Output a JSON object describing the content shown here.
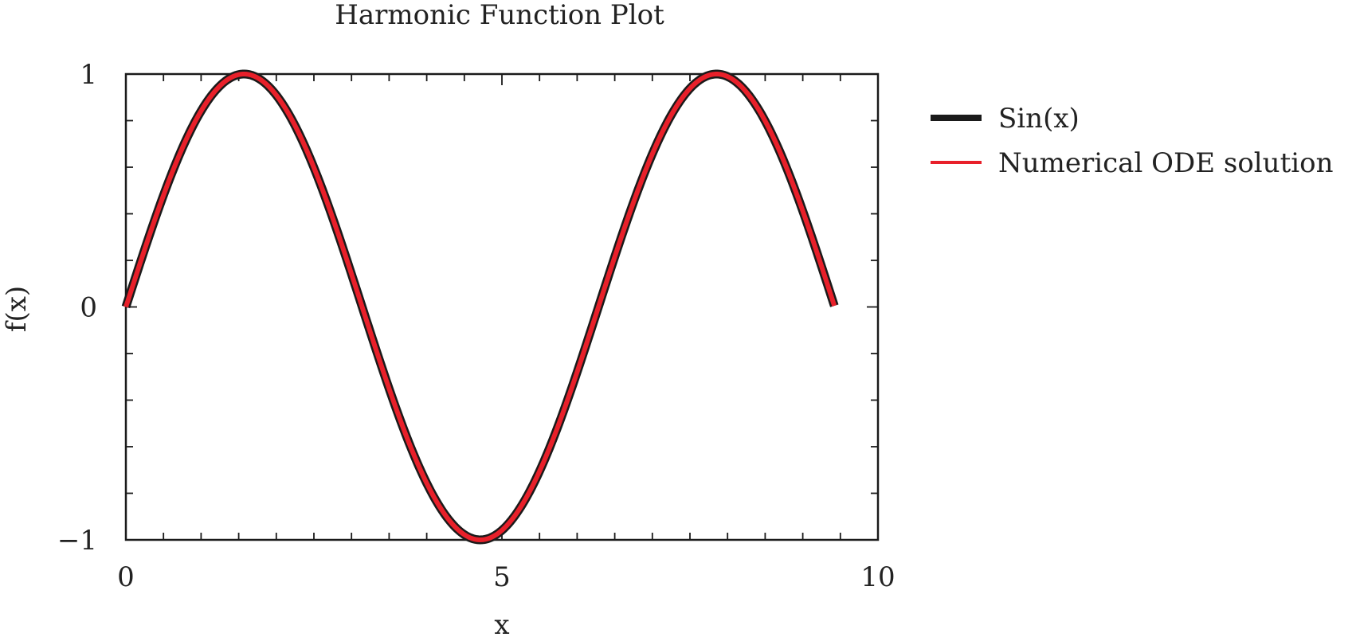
{
  "chart_data": {
    "type": "line",
    "title": "Harmonic Function Plot",
    "xlabel": "x",
    "ylabel": "f(x)",
    "xlim": [
      0,
      10
    ],
    "ylim": [
      -1,
      1
    ],
    "x_ticks": [
      0,
      5,
      10
    ],
    "x_tick_labels": [
      "0",
      "5",
      "10"
    ],
    "y_ticks": [
      -1,
      0,
      1
    ],
    "y_tick_labels": [
      "−1",
      "0",
      "1"
    ],
    "x_minor_step": 0.5,
    "y_minor_step": 0.2,
    "grid": false,
    "legend": "outside-right-top",
    "series": [
      {
        "name": "Sin(x)",
        "color": "#1a1a1a",
        "x_start": 0,
        "x_end": 9.42,
        "x": [
          0,
          0.5,
          1.0,
          1.5,
          1.57,
          2.0,
          2.5,
          3.0,
          3.14,
          3.5,
          4.0,
          4.5,
          4.71,
          5.0,
          5.5,
          6.0,
          6.28,
          6.5,
          7.0,
          7.5,
          7.85,
          8.0,
          8.5,
          9.0,
          9.42
        ],
        "values": [
          0,
          0.479,
          0.841,
          0.997,
          1.0,
          0.909,
          0.598,
          0.141,
          0.0,
          -0.351,
          -0.757,
          -0.978,
          -1.0,
          -0.959,
          -0.706,
          -0.279,
          0.0,
          0.215,
          0.657,
          0.938,
          1.0,
          0.989,
          0.798,
          0.412,
          0.0
        ]
      },
      {
        "name": "Numerical ODE solution",
        "color": "#e8202a",
        "x_start": 0,
        "x_end": 9.42,
        "x": [
          0,
          0.5,
          1.0,
          1.5,
          1.57,
          2.0,
          2.5,
          3.0,
          3.14,
          3.5,
          4.0,
          4.5,
          4.71,
          5.0,
          5.5,
          6.0,
          6.28,
          6.5,
          7.0,
          7.5,
          7.85,
          8.0,
          8.5,
          9.0,
          9.42
        ],
        "values": [
          0,
          0.479,
          0.841,
          0.997,
          1.0,
          0.909,
          0.598,
          0.141,
          0.0,
          -0.351,
          -0.757,
          -0.978,
          -1.0,
          -0.959,
          -0.706,
          -0.279,
          0.0,
          0.215,
          0.657,
          0.938,
          1.0,
          0.989,
          0.798,
          0.412,
          0.0
        ]
      }
    ]
  }
}
